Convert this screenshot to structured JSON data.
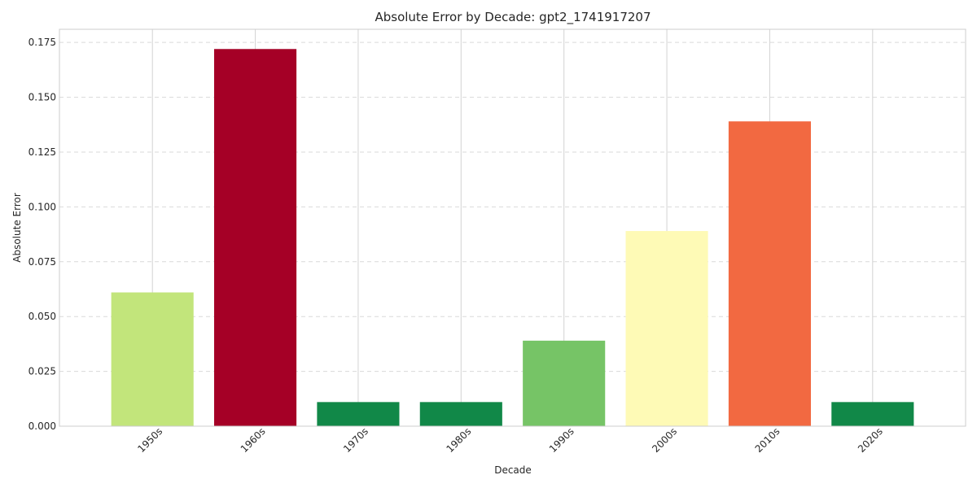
{
  "chart_data": {
    "type": "bar",
    "title": "Absolute Error by Decade: gpt2_1741917207",
    "xlabel": "Decade",
    "ylabel": "Absolute Error",
    "categories": [
      "1950s",
      "1960s",
      "1970s",
      "1980s",
      "1990s",
      "2000s",
      "2010s",
      "2020s"
    ],
    "values": [
      0.061,
      0.172,
      0.011,
      0.011,
      0.039,
      0.089,
      0.139,
      0.011
    ],
    "colors": [
      "#c2e57b",
      "#a50026",
      "#118848",
      "#118848",
      "#76c466",
      "#fefab6",
      "#f26941",
      "#118848"
    ],
    "ylim": [
      0,
      0.181
    ],
    "yticks": [
      "0.000",
      "0.025",
      "0.050",
      "0.075",
      "0.100",
      "0.125",
      "0.150",
      "0.175"
    ],
    "grid": true,
    "legend": "none"
  }
}
